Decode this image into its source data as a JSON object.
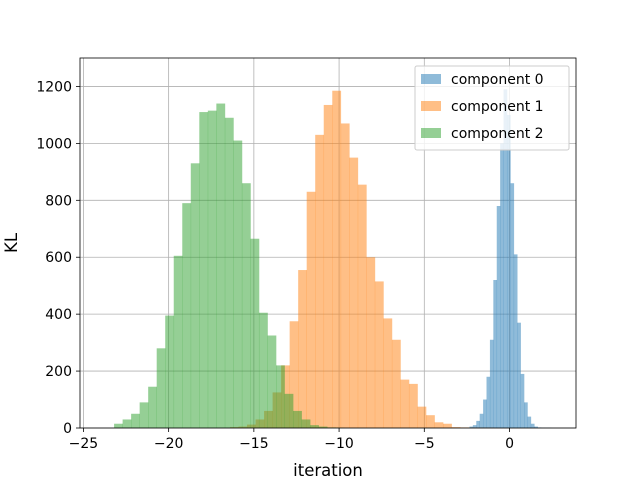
{
  "chart_data": {
    "type": "histogram",
    "title": "",
    "xlabel": "iteration",
    "ylabel": "KL",
    "xlim": [
      -25.2,
      3.9
    ],
    "ylim": [
      0,
      1300
    ],
    "xticks": [
      -25,
      -20,
      -15,
      -10,
      -5,
      0
    ],
    "xtick_labels": [
      "−25",
      "−20",
      "−15",
      "−10",
      "−5",
      "0"
    ],
    "yticks": [
      0,
      200,
      400,
      600,
      800,
      1000,
      1200
    ],
    "ytick_labels": [
      "0",
      "200",
      "400",
      "600",
      "800",
      "1000",
      "1200"
    ],
    "grid": true,
    "legend_position": "top-right",
    "series": [
      {
        "name": "component 0",
        "color": "#1f77b4",
        "opacity": 0.5,
        "bin_start": -2.35,
        "bin_width": 0.2,
        "counts": [
          5,
          10,
          25,
          50,
          100,
          180,
          310,
          520,
          780,
          1000,
          1190,
          1100,
          860,
          610,
          370,
          190,
          90,
          40,
          15,
          5,
          2,
          1,
          1,
          1
        ]
      },
      {
        "name": "component 1",
        "color": "#ff7f0e",
        "opacity": 0.5,
        "bin_start": -16.4,
        "bin_width": 0.5,
        "counts": [
          3,
          5,
          12,
          30,
          60,
          125,
          220,
          375,
          555,
          830,
          1030,
          1135,
          1185,
          1070,
          950,
          855,
          600,
          515,
          385,
          310,
          170,
          155,
          75,
          45,
          20,
          15,
          3,
          2,
          1,
          1,
          1
        ]
      },
      {
        "name": "component 2",
        "color": "#2ca02c",
        "opacity": 0.5,
        "bin_start": -23.2,
        "bin_width": 0.5,
        "counts": [
          15,
          30,
          50,
          90,
          145,
          280,
          395,
          605,
          790,
          930,
          1110,
          1115,
          1140,
          1090,
          1010,
          860,
          665,
          405,
          325,
          220,
          120,
          60,
          30,
          10,
          5,
          2,
          1
        ]
      }
    ]
  }
}
